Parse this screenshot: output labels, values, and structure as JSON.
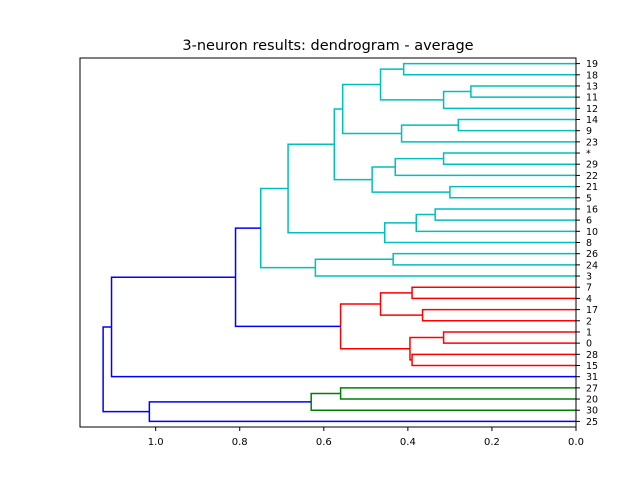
{
  "chart_data": {
    "type": "dendrogram",
    "title": "3-neuron results: dendrogram - average",
    "orientation": "left",
    "xlim": [
      1.18,
      0.0
    ],
    "xticks": [
      1.0,
      0.8,
      0.6,
      0.4,
      0.2,
      0.0
    ],
    "xtick_labels": [
      "1.0",
      "0.8",
      "0.6",
      "0.4",
      "0.2",
      "0.0"
    ],
    "leaves": [
      "19",
      "18",
      "13",
      "11",
      "12",
      "14",
      "9",
      "23",
      "*",
      "29",
      "22",
      "21",
      "5",
      "16",
      "6",
      "10",
      "8",
      "26",
      "24",
      "3",
      "7",
      "4",
      "17",
      "2",
      "1",
      "0",
      "28",
      "15",
      "31",
      "27",
      "20",
      "30",
      "25"
    ],
    "colors": {
      "cyan": "#00bfbf",
      "red": "#ff0000",
      "green": "#008000",
      "blue": "#0000ff"
    },
    "links": [
      {
        "height": 0.41,
        "left": "19",
        "right": "18",
        "color": "cyan"
      },
      {
        "height": 0.25,
        "left": "13",
        "right": "11",
        "color": "cyan"
      },
      {
        "height": 0.315,
        "left": "(13,11)",
        "right": "12",
        "color": "cyan"
      },
      {
        "height": 0.465,
        "left": "(19,18)",
        "right": "(13,11,12)",
        "color": "cyan"
      },
      {
        "height": 0.28,
        "left": "14",
        "right": "9",
        "color": "cyan"
      },
      {
        "height": 0.415,
        "left": "(14,9)",
        "right": "23",
        "color": "cyan"
      },
      {
        "height": 0.555,
        "left": "(19..12)",
        "right": "(14,9,23)",
        "color": "cyan"
      },
      {
        "height": 0.315,
        "left": "*",
        "right": "29",
        "color": "cyan"
      },
      {
        "height": 0.43,
        "left": "(*,29)",
        "right": "22",
        "color": "cyan"
      },
      {
        "height": 0.3,
        "left": "21",
        "right": "5",
        "color": "cyan"
      },
      {
        "height": 0.485,
        "left": "(*,29,22)",
        "right": "(21,5)",
        "color": "cyan"
      },
      {
        "height": 0.575,
        "left": "(19..23)",
        "right": "(*..5)",
        "color": "cyan"
      },
      {
        "height": 0.335,
        "left": "16",
        "right": "6",
        "color": "cyan"
      },
      {
        "height": 0.38,
        "left": "(16,6)",
        "right": "10",
        "color": "cyan"
      },
      {
        "height": 0.455,
        "left": "(16,6,10)",
        "right": "8",
        "color": "cyan"
      },
      {
        "height": 0.685,
        "left": "(19..5)",
        "right": "(16..8)",
        "color": "cyan"
      },
      {
        "height": 0.435,
        "left": "26",
        "right": "24",
        "color": "cyan"
      },
      {
        "height": 0.62,
        "left": "(26,24)",
        "right": "3",
        "color": "cyan"
      },
      {
        "height": 0.75,
        "left": "(19..8)",
        "right": "(26,24,3)",
        "color": "cyan"
      },
      {
        "height": 0.39,
        "left": "7",
        "right": "4",
        "color": "red"
      },
      {
        "height": 0.365,
        "left": "17",
        "right": "2",
        "color": "red"
      },
      {
        "height": 0.465,
        "left": "(7,4)",
        "right": "(17,2)",
        "color": "red"
      },
      {
        "height": 0.315,
        "left": "1",
        "right": "0",
        "color": "red"
      },
      {
        "height": 0.39,
        "left": "28",
        "right": "15",
        "color": "red"
      },
      {
        "height": 0.395,
        "left": "(1,0)",
        "right": "(28,15)",
        "color": "red"
      },
      {
        "height": 0.56,
        "left": "(7..2)",
        "right": "(1..15)",
        "color": "red"
      },
      {
        "height": 0.81,
        "left": "(19..3)",
        "right": "(7..15)",
        "color": "blue"
      },
      {
        "height": 1.105,
        "left": "(19..15)",
        "right": "31",
        "color": "blue"
      },
      {
        "height": 0.56,
        "left": "27",
        "right": "20",
        "color": "green"
      },
      {
        "height": 0.63,
        "left": "(27,20)",
        "right": "30",
        "color": "green"
      },
      {
        "height": 1.015,
        "left": "(27,20,30)",
        "right": "25",
        "color": "blue"
      },
      {
        "height": 1.125,
        "left": "(19..31)",
        "right": "(27..25)",
        "color": "blue"
      }
    ]
  }
}
